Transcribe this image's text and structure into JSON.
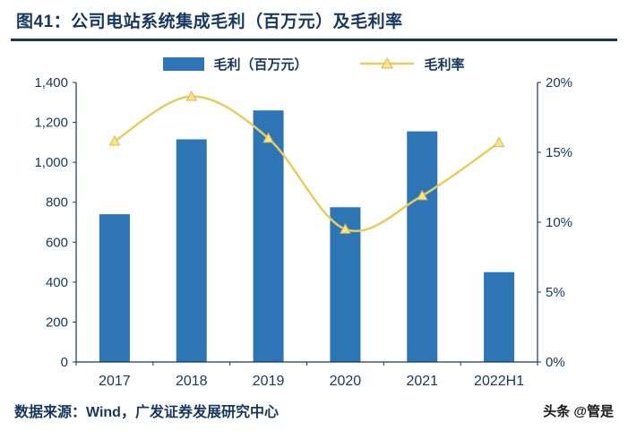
{
  "header": {
    "title": "图41：公司电站系统集成毛利（百万元）及毛利率"
  },
  "footer": {
    "source": "数据来源：Wind，广发证券发展研究中心",
    "watermark": "头条 @管是"
  },
  "chart_data": {
    "type": "bar+line combo",
    "categories": [
      "2017",
      "2018",
      "2019",
      "2020",
      "2021",
      "2022H1"
    ],
    "series": [
      {
        "name": "毛利（百万元）",
        "type": "bar",
        "axis": "left",
        "color": "#2E75B6",
        "values": [
          740,
          1115,
          1260,
          775,
          1155,
          450
        ]
      },
      {
        "name": "毛利率",
        "type": "line",
        "axis": "right",
        "color": "#E8CC5E",
        "marker": "triangle",
        "marker_fill": "#F7E48C",
        "marker_stroke": "#D9B94E",
        "values": [
          15.8,
          19.0,
          16.0,
          9.5,
          11.9,
          15.7
        ]
      }
    ],
    "left_axis": {
      "min": 0,
      "max": 1400,
      "step": 200,
      "labels": [
        "0",
        "200",
        "400",
        "600",
        "800",
        "1,000",
        "1,200",
        "1,400"
      ]
    },
    "right_axis": {
      "min": 0,
      "max": 20,
      "step": 5,
      "labels": [
        "0%",
        "5%",
        "10%",
        "15%",
        "20%"
      ]
    },
    "axis_color": "#17375E",
    "grid": false,
    "legend_position": "top-center"
  }
}
